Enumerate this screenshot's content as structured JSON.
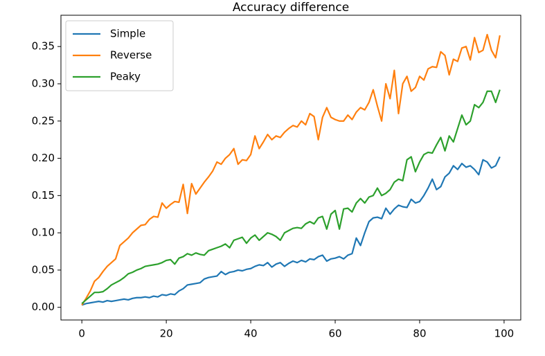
{
  "chart_data": {
    "type": "line",
    "title": "Accuracy difference",
    "x": [
      0,
      1,
      2,
      3,
      4,
      5,
      6,
      7,
      8,
      9,
      10,
      11,
      12,
      13,
      14,
      15,
      16,
      17,
      18,
      19,
      20,
      21,
      22,
      23,
      24,
      25,
      26,
      27,
      28,
      29,
      30,
      31,
      32,
      33,
      34,
      35,
      36,
      37,
      38,
      39,
      40,
      41,
      42,
      43,
      44,
      45,
      46,
      47,
      48,
      49,
      50,
      51,
      52,
      53,
      54,
      55,
      56,
      57,
      58,
      59,
      60,
      61,
      62,
      63,
      64,
      65,
      66,
      67,
      68,
      69,
      70,
      71,
      72,
      73,
      74,
      75,
      76,
      77,
      78,
      79,
      80,
      81,
      82,
      83,
      84,
      85,
      86,
      87,
      88,
      89,
      90,
      91,
      92,
      93,
      94,
      95,
      96,
      97,
      98,
      99
    ],
    "series": [
      {
        "name": "Simple",
        "color": "#1f77b4",
        "values": [
          0.003,
          0.005,
          0.006,
          0.007,
          0.008,
          0.007,
          0.009,
          0.008,
          0.009,
          0.01,
          0.011,
          0.01,
          0.012,
          0.013,
          0.013,
          0.014,
          0.013,
          0.015,
          0.014,
          0.017,
          0.016,
          0.018,
          0.017,
          0.022,
          0.025,
          0.03,
          0.031,
          0.032,
          0.033,
          0.038,
          0.04,
          0.041,
          0.042,
          0.048,
          0.044,
          0.047,
          0.048,
          0.05,
          0.049,
          0.051,
          0.052,
          0.055,
          0.057,
          0.056,
          0.06,
          0.054,
          0.058,
          0.06,
          0.055,
          0.059,
          0.062,
          0.06,
          0.063,
          0.061,
          0.065,
          0.064,
          0.068,
          0.07,
          0.062,
          0.065,
          0.066,
          0.068,
          0.065,
          0.07,
          0.072,
          0.093,
          0.083,
          0.1,
          0.115,
          0.12,
          0.121,
          0.119,
          0.133,
          0.125,
          0.132,
          0.137,
          0.135,
          0.134,
          0.145,
          0.14,
          0.142,
          0.15,
          0.16,
          0.172,
          0.158,
          0.162,
          0.175,
          0.18,
          0.19,
          0.185,
          0.193,
          0.188,
          0.19,
          0.185,
          0.178,
          0.198,
          0.195,
          0.187,
          0.19,
          0.202
        ]
      },
      {
        "name": "Reverse",
        "color": "#ff7f0e",
        "values": [
          0.003,
          0.012,
          0.022,
          0.035,
          0.04,
          0.048,
          0.055,
          0.06,
          0.065,
          0.083,
          0.088,
          0.093,
          0.1,
          0.105,
          0.11,
          0.111,
          0.118,
          0.122,
          0.121,
          0.14,
          0.133,
          0.138,
          0.142,
          0.141,
          0.165,
          0.126,
          0.166,
          0.152,
          0.16,
          0.168,
          0.175,
          0.183,
          0.195,
          0.192,
          0.2,
          0.205,
          0.213,
          0.192,
          0.198,
          0.197,
          0.205,
          0.23,
          0.213,
          0.222,
          0.232,
          0.225,
          0.23,
          0.228,
          0.235,
          0.24,
          0.244,
          0.242,
          0.25,
          0.245,
          0.26,
          0.256,
          0.225,
          0.255,
          0.268,
          0.255,
          0.252,
          0.25,
          0.25,
          0.258,
          0.252,
          0.262,
          0.268,
          0.265,
          0.275,
          0.292,
          0.27,
          0.25,
          0.3,
          0.28,
          0.318,
          0.26,
          0.3,
          0.31,
          0.29,
          0.295,
          0.31,
          0.305,
          0.32,
          0.323,
          0.322,
          0.343,
          0.338,
          0.312,
          0.333,
          0.33,
          0.348,
          0.35,
          0.332,
          0.362,
          0.342,
          0.345,
          0.366,
          0.345,
          0.335,
          0.365
        ]
      },
      {
        "name": "Peaky",
        "color": "#2ca02c",
        "values": [
          0.005,
          0.01,
          0.015,
          0.02,
          0.02,
          0.021,
          0.025,
          0.03,
          0.033,
          0.036,
          0.04,
          0.045,
          0.047,
          0.05,
          0.052,
          0.055,
          0.056,
          0.057,
          0.058,
          0.06,
          0.063,
          0.064,
          0.058,
          0.066,
          0.068,
          0.072,
          0.07,
          0.073,
          0.071,
          0.07,
          0.076,
          0.078,
          0.08,
          0.082,
          0.085,
          0.08,
          0.09,
          0.092,
          0.094,
          0.086,
          0.093,
          0.097,
          0.09,
          0.095,
          0.1,
          0.098,
          0.095,
          0.09,
          0.1,
          0.103,
          0.106,
          0.107,
          0.106,
          0.112,
          0.115,
          0.112,
          0.12,
          0.122,
          0.105,
          0.125,
          0.13,
          0.105,
          0.132,
          0.133,
          0.128,
          0.14,
          0.146,
          0.14,
          0.148,
          0.15,
          0.16,
          0.15,
          0.153,
          0.158,
          0.168,
          0.172,
          0.17,
          0.198,
          0.202,
          0.182,
          0.195,
          0.205,
          0.208,
          0.207,
          0.218,
          0.228,
          0.21,
          0.23,
          0.222,
          0.24,
          0.258,
          0.245,
          0.25,
          0.272,
          0.268,
          0.275,
          0.29,
          0.29,
          0.275,
          0.292
        ]
      }
    ],
    "xlim": [
      -4.95,
      103.95
    ],
    "xticks": [
      0,
      20,
      40,
      60,
      80,
      100
    ],
    "ylim": [
      -0.017,
      0.392
    ],
    "yticks": [
      {
        "value": 0,
        "label": "0.00"
      },
      0.05,
      {
        "value": 0.1,
        "label": "0.10"
      },
      0.15,
      {
        "value": 0.2,
        "label": "0.20"
      },
      0.25,
      {
        "value": 0.3,
        "label": "0.30"
      },
      0.35
    ],
    "grid": false,
    "legend": "upper left"
  }
}
